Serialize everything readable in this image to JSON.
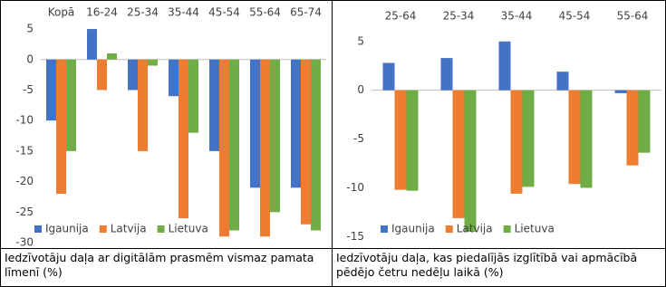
{
  "chart_data": [
    {
      "type": "bar",
      "categories": [
        "Kopā",
        "16-24",
        "25-34",
        "35-44",
        "45-54",
        "55-64",
        "65-74"
      ],
      "series": [
        {
          "name": "Igaunija",
          "color": "#4472c4",
          "values": [
            -10,
            5,
            -5,
            -6,
            -15,
            -21,
            -21
          ]
        },
        {
          "name": "Latvija",
          "color": "#ed7d31",
          "values": [
            -22,
            -5,
            -15,
            -26,
            -29,
            -29,
            -27
          ]
        },
        {
          "name": "Lietuva",
          "color": "#70ad47",
          "values": [
            -15,
            1,
            -1,
            -12,
            -28,
            -25,
            -28
          ]
        }
      ],
      "ylim": [
        -30,
        5.6
      ],
      "yticks": [
        5,
        0,
        -5,
        -10,
        -15,
        -20,
        -25,
        -30
      ],
      "grid": false,
      "legend": "bottom-left",
      "caption": "Iedzīvotāju daļa ar digitālām prasmēm vismaz pamata līmenī (%)"
    },
    {
      "type": "bar",
      "categories": [
        "25-64",
        "25-34",
        "35-44",
        "45-54",
        "55-64"
      ],
      "series": [
        {
          "name": "Igaunija",
          "color": "#4472c4",
          "values": [
            2.8,
            3.3,
            5,
            1.9,
            -0.3
          ]
        },
        {
          "name": "Latvija",
          "color": "#ed7d31",
          "values": [
            -10.2,
            -13.1,
            -10.6,
            -9.6,
            -7.7
          ]
        },
        {
          "name": "Lietuva",
          "color": "#70ad47",
          "values": [
            -10.3,
            -14.5,
            -9.9,
            -10,
            -6.4
          ]
        }
      ],
      "ylim": [
        -15.8,
        6
      ],
      "yticks": [
        5,
        0,
        -5,
        -10,
        -15
      ],
      "grid": false,
      "legend": "bottom",
      "caption": "Iedzīvotāju daļa, kas piedalījās izglītībā vai apmācībā pēdējo četru nedēļu laikā (%)"
    }
  ]
}
